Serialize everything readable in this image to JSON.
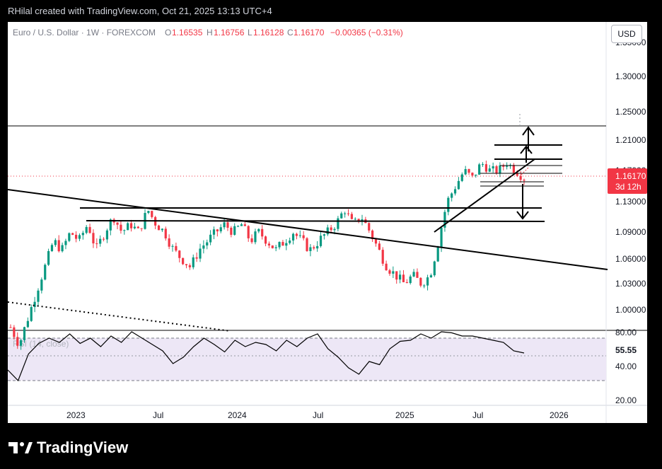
{
  "header": {
    "credit": "RHilal created with TradingView.com, Oct 21, 2025 13:13 UTC+4"
  },
  "legend": {
    "symbol": "Euro / U.S. Dollar · 1W · FOREXCOM",
    "o_label": "O",
    "o_value": "1.16535",
    "h_label": "H",
    "h_value": "1.16756",
    "l_label": "L",
    "l_value": "1.16128",
    "c_label": "C",
    "c_value": "1.16170",
    "change": "−0.00365 (−0.31%)"
  },
  "currency_button": "USD",
  "price_tag": {
    "price": "1.16170",
    "countdown": "3d 12h"
  },
  "rsi": {
    "label": "RSI (14, close)",
    "value": "55.55"
  },
  "brand": {
    "name": "TradingView"
  },
  "colors": {
    "up": "#089981",
    "down": "#f23645",
    "rsi_band": "#ede7f6",
    "rsi_line": "#000000",
    "price_tag": "#f23645",
    "legend_change": "#f23645"
  },
  "chart_data": {
    "type": "candlestick",
    "symbol": "EUR/USD",
    "interval": "1W",
    "price_axis": {
      "ticks": [
        1.0,
        1.03,
        1.06,
        1.09,
        1.13,
        1.17,
        1.21,
        1.25,
        1.3
      ],
      "labels": [
        "1.00000",
        "1.03000",
        "1.06000",
        "1.09000",
        "1.13000",
        "1.17000",
        "1.21000",
        "1.25000",
        "1.30000"
      ]
    },
    "time_axis": {
      "labels": [
        "2023",
        "Jul",
        "2024",
        "Jul",
        "2025",
        "Jul",
        "2026"
      ]
    },
    "rsi_axis": {
      "ticks": [
        80,
        40,
        20
      ],
      "labels": [
        "80.00",
        "40.00",
        "20.00"
      ],
      "band": [
        30,
        70
      ]
    },
    "close_path": [
      0.98,
      0.96,
      0.99,
      1.02,
      1.05,
      1.08,
      1.07,
      1.09,
      1.08,
      1.1,
      1.07,
      1.09,
      1.11,
      1.09,
      1.1,
      1.09,
      1.12,
      1.1,
      1.09,
      1.07,
      1.06,
      1.05,
      1.07,
      1.08,
      1.09,
      1.1,
      1.09,
      1.1,
      1.08,
      1.09,
      1.08,
      1.07,
      1.08,
      1.09,
      1.08,
      1.07,
      1.08,
      1.09,
      1.1,
      1.12,
      1.1,
      1.11,
      1.09,
      1.07,
      1.05,
      1.04,
      1.03,
      1.04,
      1.03,
      1.04,
      1.08,
      1.13,
      1.15,
      1.17,
      1.16,
      1.18,
      1.17,
      1.17,
      1.18,
      1.17,
      1.16
    ],
    "rsi_path": [
      40,
      30,
      55,
      65,
      70,
      66,
      74,
      65,
      70,
      62,
      72,
      66,
      76,
      70,
      64,
      58,
      46,
      52,
      62,
      70,
      64,
      57,
      68,
      62,
      66,
      64,
      58,
      68,
      62,
      70,
      74,
      60,
      52,
      42,
      36,
      48,
      45,
      60,
      67,
      68,
      74,
      70,
      76,
      75,
      72,
      72,
      70,
      68,
      66,
      58,
      56
    ]
  }
}
